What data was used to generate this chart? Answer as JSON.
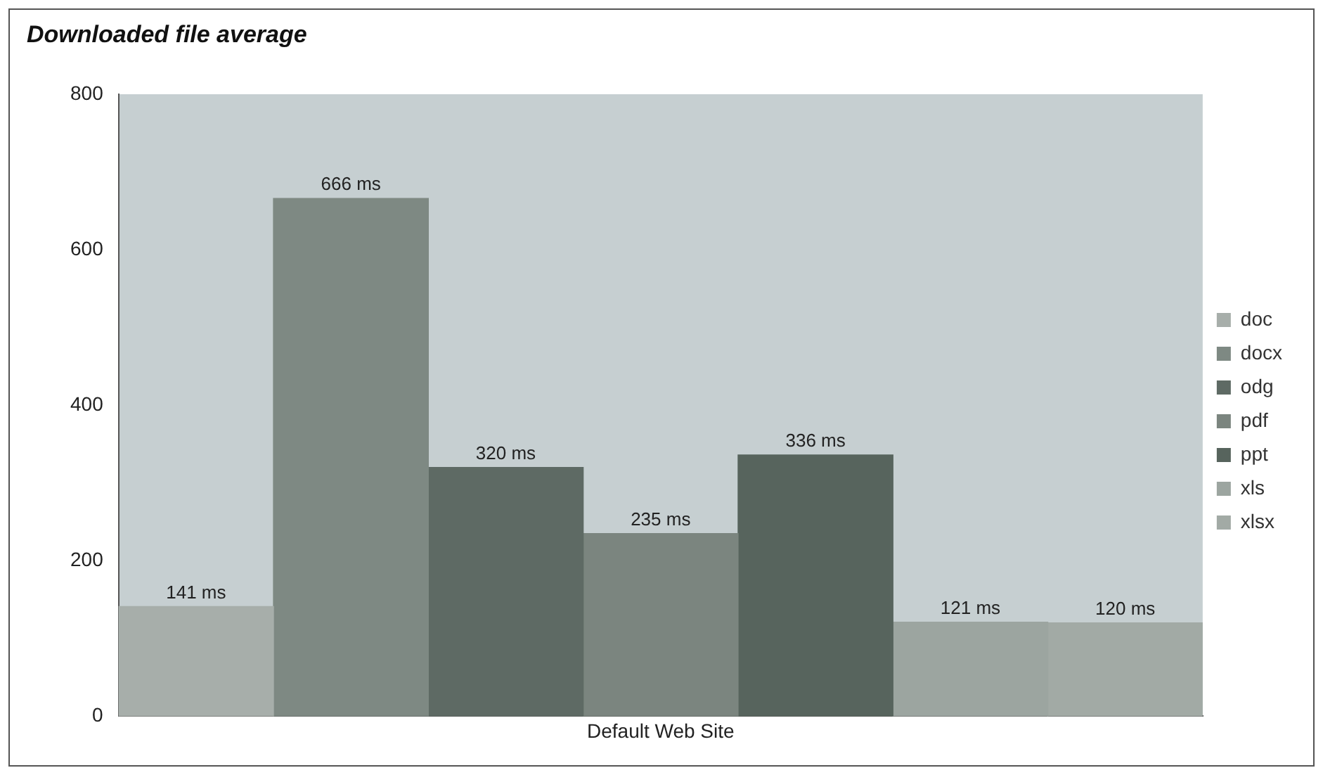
{
  "chart_data": {
    "type": "bar",
    "title": "Downloaded file average",
    "categories": [
      "Default Web Site"
    ],
    "series": [
      {
        "name": "doc",
        "color": "#a7aeaa",
        "values": [
          141
        ],
        "value_labels": [
          "141 ms"
        ]
      },
      {
        "name": "docx",
        "color": "#7e8983",
        "values": [
          666
        ],
        "value_labels": [
          "666 ms"
        ]
      },
      {
        "name": "odg",
        "color": "#5e6a64",
        "values": [
          320
        ],
        "value_labels": [
          "320 ms"
        ]
      },
      {
        "name": "pdf",
        "color": "#7b857f",
        "values": [
          235
        ],
        "value_labels": [
          "235 ms"
        ]
      },
      {
        "name": "ppt",
        "color": "#57645d",
        "values": [
          336
        ],
        "value_labels": [
          "336 ms"
        ]
      },
      {
        "name": "xls",
        "color": "#9ca5a0",
        "values": [
          121
        ],
        "value_labels": [
          "121 ms"
        ]
      },
      {
        "name": "xlsx",
        "color": "#a2aaa5",
        "values": [
          120
        ],
        "value_labels": [
          "120 ms"
        ]
      }
    ],
    "ylim": [
      0,
      800
    ],
    "yticks": [
      0,
      200,
      400,
      600,
      800
    ],
    "grid": false,
    "legend": "right"
  }
}
